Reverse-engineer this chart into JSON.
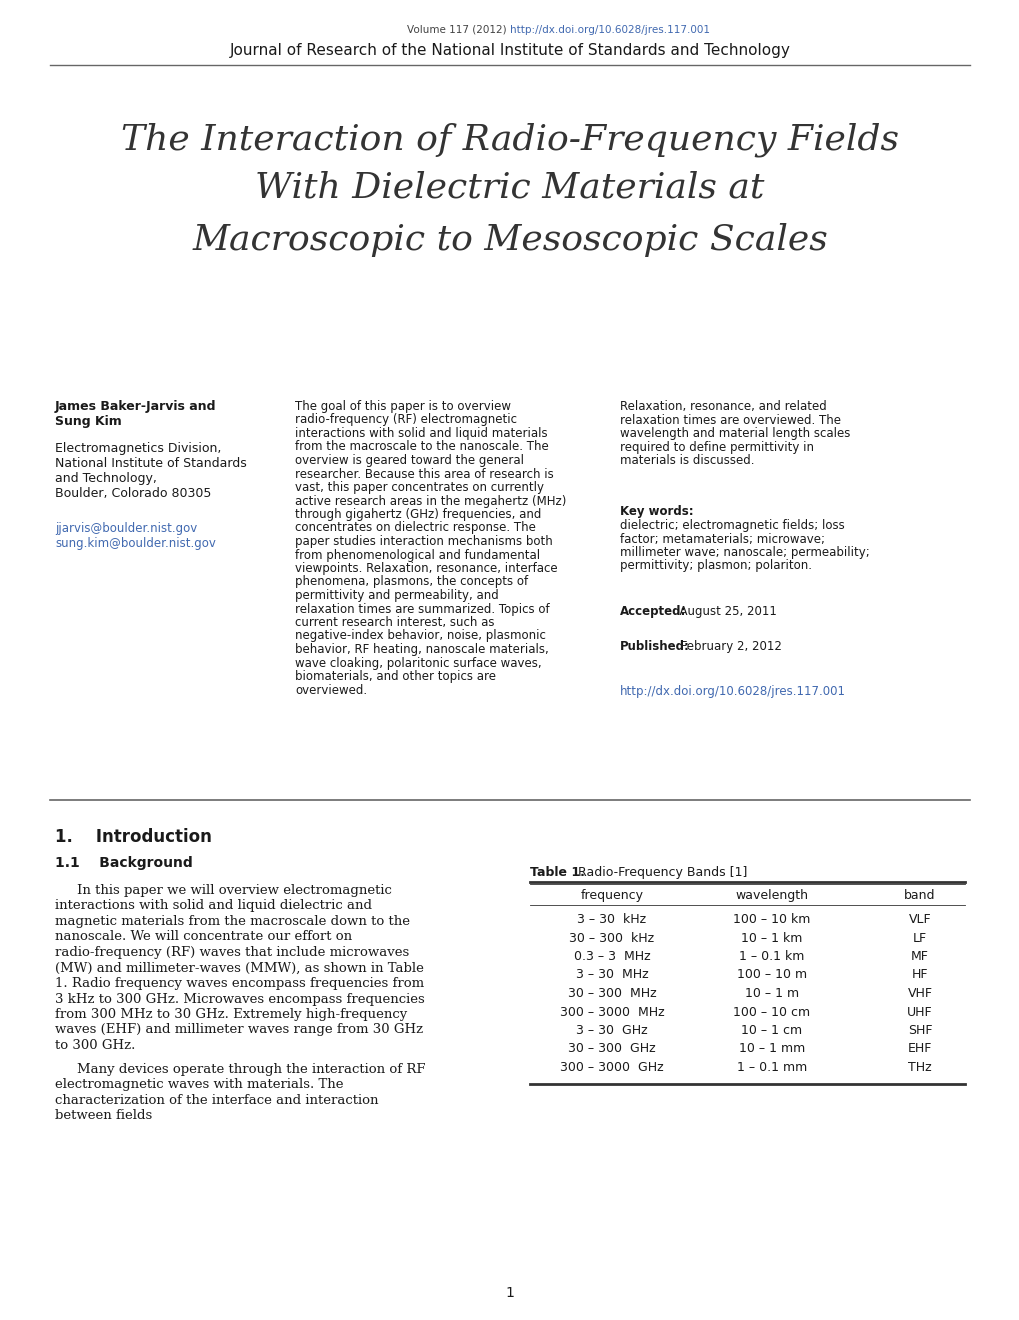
{
  "bg_color": "#ffffff",
  "header_line1_normal": "Volume 117 (2012) ",
  "header_line1_link": "http://dx.doi.org/10.6028/jres.117.001",
  "header_line2": "Journal of Research of the National Institute of Standards and Technology",
  "title_line1": "The Interaction of Radio-Frequency Fields",
  "title_line2": "With Dielectric Materials at",
  "title_line3": "Macroscopic to Mesoscopic Scales",
  "author_bold1": "James Baker-Jarvis and",
  "author_bold2": "Sung Kim",
  "author_affil_lines": [
    "Electromagnetics Division,",
    "National Institute of Standards",
    "and Technology,",
    "Boulder, Colorado 80305"
  ],
  "author_email1": "jjarvis@boulder.nist.gov",
  "author_email2": "sung.kim@boulder.nist.gov",
  "abstract_col2": "The goal of this paper is to overview radio-frequency (RF) electromagnetic interactions with solid and liquid materials from the macroscale to the nanoscale. The overview is geared toward the general researcher. Because this area of research is vast, this paper concentrates on currently active research areas in the megahertz (MHz) through gigahertz (GHz) frequencies, and concentrates on dielectric response. The paper studies interaction mechanisms both from phenomenological and fundamental viewpoints. Relaxation, resonance, interface phenomena, plasmons, the concepts of permittivity and permeability, and relaxation times are summarized. Topics of current research interest, such as negative-index behavior, noise, plasmonic behavior, RF heating, nanoscale materials, wave cloaking, polaritonic surface waves, biomaterials, and other topics are overviewed.",
  "abstract_col3_p1": "Relaxation, resonance, and related relaxation times are overviewed. The wavelength and material length scales required to define permittivity in materials is discussed.",
  "abstract_col3_keywords_label": "Key words:",
  "abstract_col3_keywords": " dielectric; electromagnetic fields; loss factor; metamaterials; microwave; millimeter wave; nanoscale; permeability; permittivity; plasmon; polariton.",
  "abstract_col3_accepted_label": "Accepted:",
  "abstract_col3_accepted": "  August 25, 2011",
  "abstract_col3_published_label": "Published:",
  "abstract_col3_published": " February 2, 2012",
  "abstract_col3_doi": "http://dx.doi.org/10.6028/jres.117.001",
  "section1_title": "1.    Introduction",
  "section11_title": "1.1    Background",
  "intro_para1": "In this paper we will overview electromagnetic interactions with solid and liquid dielectric and magnetic materials from the macroscale down to the nanoscale. We will concentrate our effort on radio-frequency (RF) waves that include microwaves (MW) and millimeter-waves (MMW), as shown in Table 1. Radio frequency waves encompass frequencies from 3 kHz to 300 GHz. Microwaves encompass frequencies from 300 MHz to 30 GHz. Extremely high-frequency waves (EHF) and millimeter waves range from 30 GHz to 300 GHz.",
  "intro_para2": "Many devices operate through the interaction of RF electromagnetic waves with materials. The characterization of the interface and interaction between fields",
  "table_title_bold": "Table 1.",
  "table_title_normal": "  Radio-Frequency Bands [1]",
  "table_headers": [
    "frequency",
    "wavelength",
    "band"
  ],
  "table_rows": [
    [
      "3 – 30  kHz",
      "100 – 10 km",
      "VLF"
    ],
    [
      "30 – 300  kHz",
      "10 – 1 km",
      "LF"
    ],
    [
      "0.3 – 3  MHz",
      "1 – 0.1 km",
      "MF"
    ],
    [
      "3 – 30  MHz",
      "100 – 10 m",
      "HF"
    ],
    [
      "30 – 300  MHz",
      "10 – 1 m",
      "VHF"
    ],
    [
      "300 – 3000  MHz",
      "100 – 10 cm",
      "UHF"
    ],
    [
      "3 – 30  GHz",
      "10 – 1 cm",
      "SHF"
    ],
    [
      "30 – 300  GHz",
      "10 – 1 mm",
      "EHF"
    ],
    [
      "300 – 3000  GHz",
      "1 – 0.1 mm",
      "THz"
    ]
  ],
  "page_number": "1",
  "link_color": "#4169b0",
  "text_color": "#1a1a1a",
  "rule_color": "#666666"
}
